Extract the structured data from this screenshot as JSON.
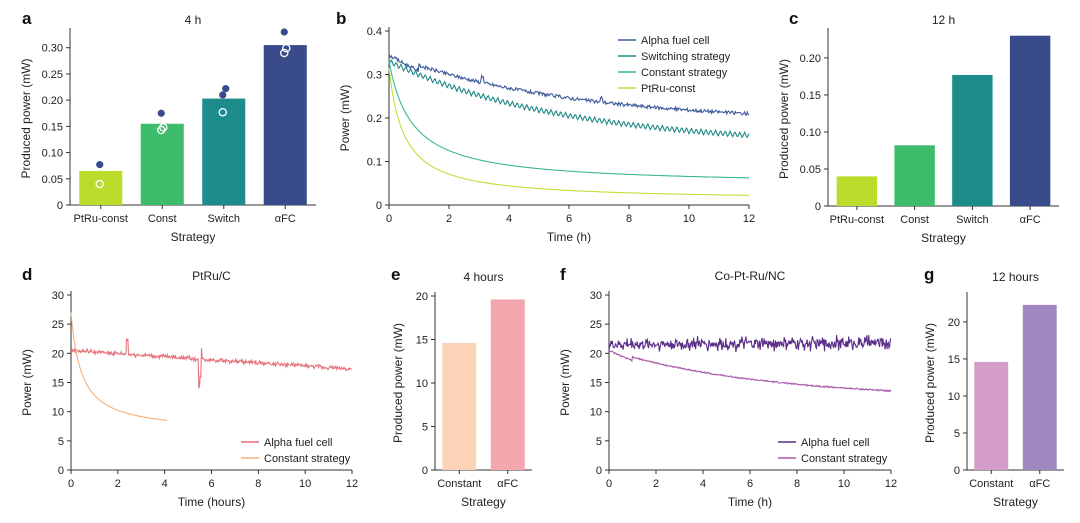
{
  "chart_data": [
    {
      "panel": "a",
      "type": "bar",
      "title": "4 h",
      "xlabel": "Strategy",
      "ylabel": "Produced power (mW)",
      "ylim": [
        0,
        0.33
      ],
      "yticks": [
        "0",
        "0.05",
        "0.10",
        "0.15",
        "0.20",
        "0.25",
        "0.30"
      ],
      "categories": [
        "PtRu-const",
        "Const",
        "Switch",
        "αFC"
      ],
      "values": [
        0.065,
        0.155,
        0.203,
        0.305
      ],
      "colors": [
        "#bcdc2c",
        "#3dbc6c",
        "#1f8c8c",
        "#3a4b8c"
      ],
      "points": [
        {
          "filled": [
            0.077
          ],
          "open": [
            0.04
          ]
        },
        {
          "filled": [
            0.175
          ],
          "open": [
            0.143,
            0.148
          ]
        },
        {
          "filled": [
            0.21,
            0.222
          ],
          "open": [
            0.177
          ]
        },
        {
          "filled": [
            0.33
          ],
          "open": [
            0.29,
            0.299
          ]
        }
      ]
    },
    {
      "panel": "b",
      "type": "line",
      "xlabel": "Time (h)",
      "ylabel": "Power (mW)",
      "xlim": [
        0,
        12
      ],
      "ylim": [
        0,
        0.4
      ],
      "xticks": [
        "0",
        "2",
        "4",
        "6",
        "8",
        "10",
        "12"
      ],
      "yticks": [
        "0",
        "0.1",
        "0.2",
        "0.3",
        "0.4"
      ],
      "legend_position": "top-right",
      "series": [
        {
          "name": "Alpha fuel cell",
          "color": "#3d5a9c",
          "shape": "decay",
          "y0": 0.345,
          "plateau": 0.19,
          "k": 0.17,
          "noise": 0.004,
          "spikes": [
            [
              3.1,
              0.016
            ],
            [
              7.1,
              0.01
            ]
          ]
        },
        {
          "name": "Switching strategy",
          "color": "#1e8a86",
          "shape": "sawtooth",
          "y0": 0.33,
          "plateau": 0.135,
          "k": 0.17,
          "amp": 0.013
        },
        {
          "name": "Constant strategy",
          "color": "#39b98c",
          "shape": "decay",
          "y0": 0.33,
          "plateau": 0.045,
          "k": 0.32,
          "noise": 0
        },
        {
          "name": "PtRu-const",
          "color": "#c6dc38",
          "shape": "decay",
          "y0": 0.315,
          "plateau": 0.01,
          "k": 0.5,
          "noise": 0
        }
      ]
    },
    {
      "panel": "c",
      "type": "bar",
      "title": "12 h",
      "xlabel": "Strategy",
      "ylabel": "Produced power (mW)",
      "ylim": [
        0,
        0.235
      ],
      "yticks": [
        "0",
        "0.05",
        "0.10",
        "0.15",
        "0.20"
      ],
      "categories": [
        "PtRu-const",
        "Const",
        "Switch",
        "αFC"
      ],
      "values": [
        0.04,
        0.082,
        0.177,
        0.23
      ],
      "colors": [
        "#bcdc2c",
        "#3dbc6c",
        "#1f8c8c",
        "#3a4b8c"
      ]
    },
    {
      "panel": "d",
      "type": "line",
      "title": "PtRu/C",
      "xlabel": "Time (hours)",
      "ylabel": "Power (mW)",
      "xlim": [
        0,
        12
      ],
      "ylim": [
        0,
        30
      ],
      "xticks": [
        "0",
        "2",
        "4",
        "6",
        "8",
        "10",
        "12"
      ],
      "yticks": [
        "0",
        "5",
        "10",
        "15",
        "20",
        "25",
        "30"
      ],
      "legend_position": "bottom-right",
      "series": [
        {
          "name": "Alpha fuel cell",
          "color": "#e8707a",
          "shape": "noisy",
          "start": 20.5,
          "end": 17.3,
          "noise": 0.45,
          "spikes": [
            [
              2.4,
              2.6
            ],
            [
              5.5,
              -5.0
            ],
            [
              5.55,
              2.0
            ]
          ]
        },
        {
          "name": "Constant strategy",
          "color": "#f6b27c",
          "shape": "decay",
          "xmax": 4.1,
          "y0": 27,
          "plateau": 6.5,
          "k": 0.56,
          "noise": 0
        }
      ]
    },
    {
      "panel": "e",
      "type": "bar",
      "title": "4 hours",
      "xlabel": "Strategy",
      "ylabel": "Produced power (mW)",
      "ylim": [
        0,
        20
      ],
      "yticks": [
        "0",
        "5",
        "10",
        "15",
        "20"
      ],
      "categories": [
        "Constant",
        "αFC"
      ],
      "values": [
        14.6,
        19.6
      ],
      "colors": [
        "#fcd3b6",
        "#f4a6ae"
      ]
    },
    {
      "panel": "f",
      "type": "line",
      "title": "Co-Pt-Ru/NC",
      "xlabel": "Time (h)",
      "ylabel": "Power (mW)",
      "xlim": [
        0,
        12
      ],
      "ylim": [
        0,
        30
      ],
      "xticks": [
        "0",
        "2",
        "4",
        "6",
        "8",
        "10",
        "12"
      ],
      "yticks": [
        "0",
        "5",
        "10",
        "15",
        "20",
        "25",
        "30"
      ],
      "legend_position": "bottom-right",
      "series": [
        {
          "name": "Alpha fuel cell",
          "color": "#5a2d88",
          "shape": "noisy",
          "start": 21.5,
          "end": 21.8,
          "noise": 1.4,
          "spikes": []
        },
        {
          "name": "Constant strategy",
          "color": "#a85aa8",
          "shape": "decay",
          "y0": 20.5,
          "plateau": 12.2,
          "k": 0.15,
          "noise": 0.12
        }
      ]
    },
    {
      "panel": "g",
      "type": "bar",
      "title": "12 hours",
      "xlabel": "Strategy",
      "ylabel": "Produced power (mW)",
      "ylim": [
        0,
        23.5
      ],
      "yticks": [
        "0",
        "5",
        "10",
        "15",
        "20"
      ],
      "categories": [
        "Constant",
        "αFC"
      ],
      "values": [
        14.6,
        22.3
      ],
      "colors": [
        "#d49cc8",
        "#a088c0"
      ]
    }
  ]
}
